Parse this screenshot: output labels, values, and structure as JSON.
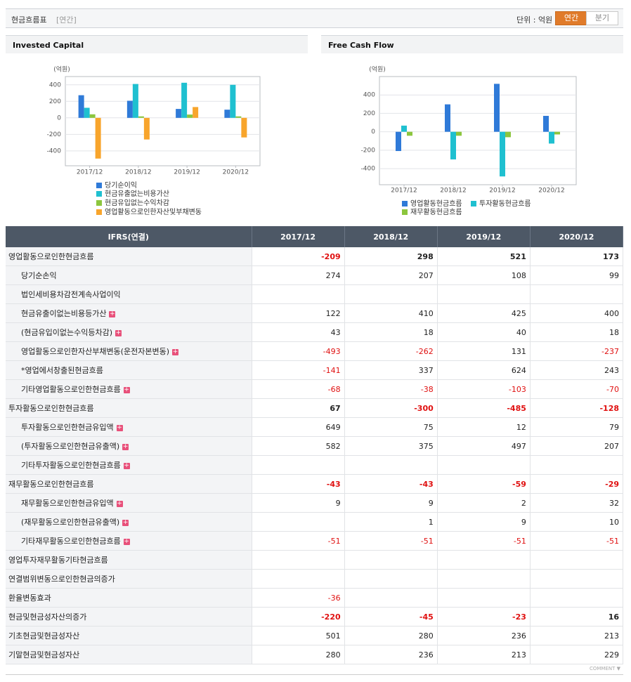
{
  "header": {
    "title": "현금흐름표",
    "period": "[연간]",
    "unit": "단위 : 억원",
    "tabs": [
      "연간",
      "분기"
    ]
  },
  "chart_data": [
    {
      "type": "bar",
      "title": "Invested Capital",
      "y_label": "(억원)",
      "categories": [
        "2017/12",
        "2018/12",
        "2019/12",
        "2020/12"
      ],
      "series": [
        {
          "name": "당기순이익",
          "color": "#2f7ad8",
          "values": [
            274,
            207,
            108,
            99
          ]
        },
        {
          "name": "현금유출없는비용가산",
          "color": "#1fc0d0",
          "values": [
            122,
            410,
            425,
            400
          ]
        },
        {
          "name": "현금유입없는수익차감",
          "color": "#8cc63e",
          "values": [
            43,
            18,
            40,
            18
          ]
        },
        {
          "name": "영업활동으로인한자산및부채변동",
          "color": "#f8a52c",
          "values": [
            -493,
            -262,
            131,
            -237
          ]
        }
      ],
      "ylim": [
        -580,
        500
      ],
      "yticks": [
        -400,
        -200,
        0,
        200,
        400
      ],
      "grid": true
    },
    {
      "type": "bar",
      "title": "Free Cash Flow",
      "y_label": "(억원)",
      "categories": [
        "2017/12",
        "2018/12",
        "2019/12",
        "2020/12"
      ],
      "series": [
        {
          "name": "영업활동현금흐름",
          "color": "#2f7ad8",
          "values": [
            -209,
            298,
            521,
            173
          ]
        },
        {
          "name": "투자활동현금흐름",
          "color": "#1fc0d0",
          "values": [
            67,
            -300,
            -485,
            -128
          ]
        },
        {
          "name": "재무활동현금흐름",
          "color": "#8cc63e",
          "values": [
            -43,
            -43,
            -59,
            -29
          ]
        }
      ],
      "ylim": [
        -575,
        600
      ],
      "yticks": [
        -400,
        -200,
        0,
        200,
        400
      ],
      "grid": true
    }
  ],
  "table": {
    "columns": [
      "IFRS(연결)",
      "2017/12",
      "2018/12",
      "2019/12",
      "2020/12"
    ],
    "rows": [
      {
        "label": "영업활동으로인한현금흐름",
        "level": 0,
        "bold": true,
        "expandable": false,
        "values": [
          -209,
          298,
          521,
          173
        ]
      },
      {
        "label": "당기순손익",
        "level": 1,
        "bold": false,
        "expandable": false,
        "values": [
          274,
          207,
          108,
          99
        ]
      },
      {
        "label": "법인세비용차감전계속사업이익",
        "level": 1,
        "bold": false,
        "expandable": false,
        "values": [
          null,
          null,
          null,
          null
        ]
      },
      {
        "label": "현금유출이없는비용등가산",
        "level": 1,
        "bold": false,
        "expandable": true,
        "values": [
          122,
          410,
          425,
          400
        ]
      },
      {
        "label": "(현금유입이없는수익등차감)",
        "level": 1,
        "bold": false,
        "expandable": true,
        "values": [
          43,
          18,
          40,
          18
        ]
      },
      {
        "label": "영업활동으로인한자산부채변동(운전자본변동)",
        "level": 1,
        "bold": false,
        "expandable": true,
        "values": [
          -493,
          -262,
          131,
          -237
        ]
      },
      {
        "label": "*영업에서창출된현금흐름",
        "level": 1,
        "bold": false,
        "expandable": false,
        "values": [
          -141,
          337,
          624,
          243
        ]
      },
      {
        "label": "기타영업활동으로인한현금흐름",
        "level": 1,
        "bold": false,
        "expandable": true,
        "values": [
          -68,
          -38,
          -103,
          -70
        ]
      },
      {
        "label": "투자활동으로인한현금흐름",
        "level": 0,
        "bold": true,
        "expandable": false,
        "values": [
          67,
          -300,
          -485,
          -128
        ]
      },
      {
        "label": "투자활동으로인한현금유입액",
        "level": 1,
        "bold": false,
        "expandable": true,
        "values": [
          649,
          75,
          12,
          79
        ]
      },
      {
        "label": "(투자활동으로인한현금유출액)",
        "level": 1,
        "bold": false,
        "expandable": true,
        "values": [
          582,
          375,
          497,
          207
        ]
      },
      {
        "label": "기타투자활동으로인한현금흐름",
        "level": 1,
        "bold": false,
        "expandable": true,
        "values": [
          null,
          null,
          null,
          null
        ]
      },
      {
        "label": "재무활동으로인한현금흐름",
        "level": 0,
        "bold": true,
        "expandable": false,
        "values": [
          -43,
          -43,
          -59,
          -29
        ]
      },
      {
        "label": "재무활동으로인한현금유입액",
        "level": 1,
        "bold": false,
        "expandable": true,
        "values": [
          9,
          9,
          2,
          32
        ]
      },
      {
        "label": "(재무활동으로인한현금유출액)",
        "level": 1,
        "bold": false,
        "expandable": true,
        "values": [
          null,
          1,
          9,
          10
        ]
      },
      {
        "label": "기타재무활동으로인한현금흐름",
        "level": 1,
        "bold": false,
        "expandable": true,
        "values": [
          -51,
          -51,
          -51,
          -51
        ]
      },
      {
        "label": "영업투자재무활동기타현금흐름",
        "level": 0,
        "bold": false,
        "expandable": false,
        "values": [
          null,
          null,
          null,
          null
        ]
      },
      {
        "label": "연결범위변동으로인한현금의증가",
        "level": 0,
        "bold": false,
        "expandable": false,
        "values": [
          null,
          null,
          null,
          null
        ]
      },
      {
        "label": "환율변동효과",
        "level": 0,
        "bold": false,
        "expandable": false,
        "values": [
          -36,
          null,
          null,
          null
        ]
      },
      {
        "label": "현금및현금성자산의증가",
        "level": 0,
        "bold": true,
        "expandable": false,
        "values": [
          -220,
          -45,
          -23,
          16
        ]
      },
      {
        "label": "기초현금및현금성자산",
        "level": 0,
        "bold": false,
        "expandable": false,
        "values": [
          501,
          280,
          236,
          213
        ]
      },
      {
        "label": "기말현금및현금성자산",
        "level": 0,
        "bold": false,
        "expandable": false,
        "values": [
          280,
          236,
          213,
          229
        ]
      }
    ]
  },
  "footer": {
    "comment": "COMMENT"
  }
}
